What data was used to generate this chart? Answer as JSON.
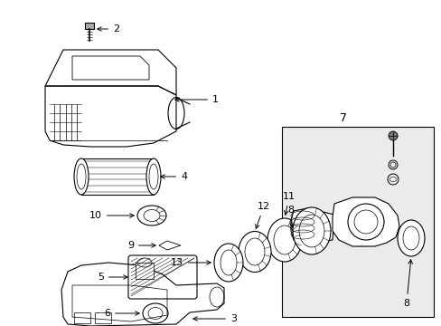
{
  "bg_color": "#ffffff",
  "line_color": "#000000",
  "figsize": [
    4.89,
    3.6
  ],
  "dpi": 100,
  "font_size": 8,
  "box_bg": "#ebebeb"
}
